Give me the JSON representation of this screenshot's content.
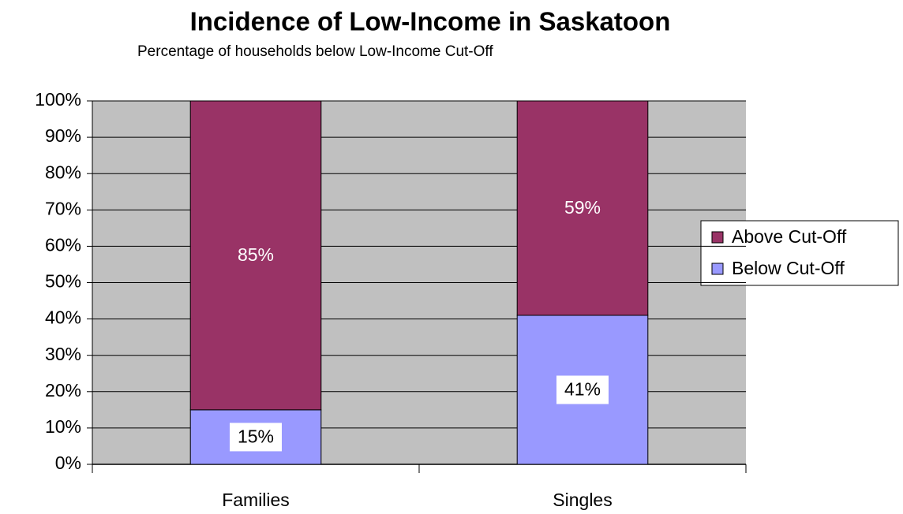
{
  "chart_data": {
    "type": "stacked_bar",
    "title": "Incidence of Low-Income in Saskatoon",
    "subtitle": "Percentage of households below Low-Income Cut-Off",
    "categories": [
      "Families",
      "Singles"
    ],
    "series": [
      {
        "name": "Below Cut-Off",
        "color": "#9999ff",
        "values": [
          15,
          41
        ],
        "value_labels": [
          "15%",
          "41%"
        ]
      },
      {
        "name": "Above Cut-Off",
        "color": "#993366",
        "values": [
          85,
          59
        ],
        "value_labels": [
          "85%",
          "59%"
        ]
      }
    ],
    "ylim": [
      0,
      100
    ],
    "yticks": [
      {
        "value": 0,
        "label": "0%"
      },
      {
        "value": 10,
        "label": "10%"
      },
      {
        "value": 20,
        "label": "20%"
      },
      {
        "value": 30,
        "label": "30%"
      },
      {
        "value": 40,
        "label": "40%"
      },
      {
        "value": 50,
        "label": "50%"
      },
      {
        "value": 60,
        "label": "60%"
      },
      {
        "value": 70,
        "label": "70%"
      },
      {
        "value": 80,
        "label": "80%"
      },
      {
        "value": 90,
        "label": "90%"
      },
      {
        "value": 100,
        "label": "100%"
      }
    ],
    "grid": true,
    "legend": "right"
  }
}
